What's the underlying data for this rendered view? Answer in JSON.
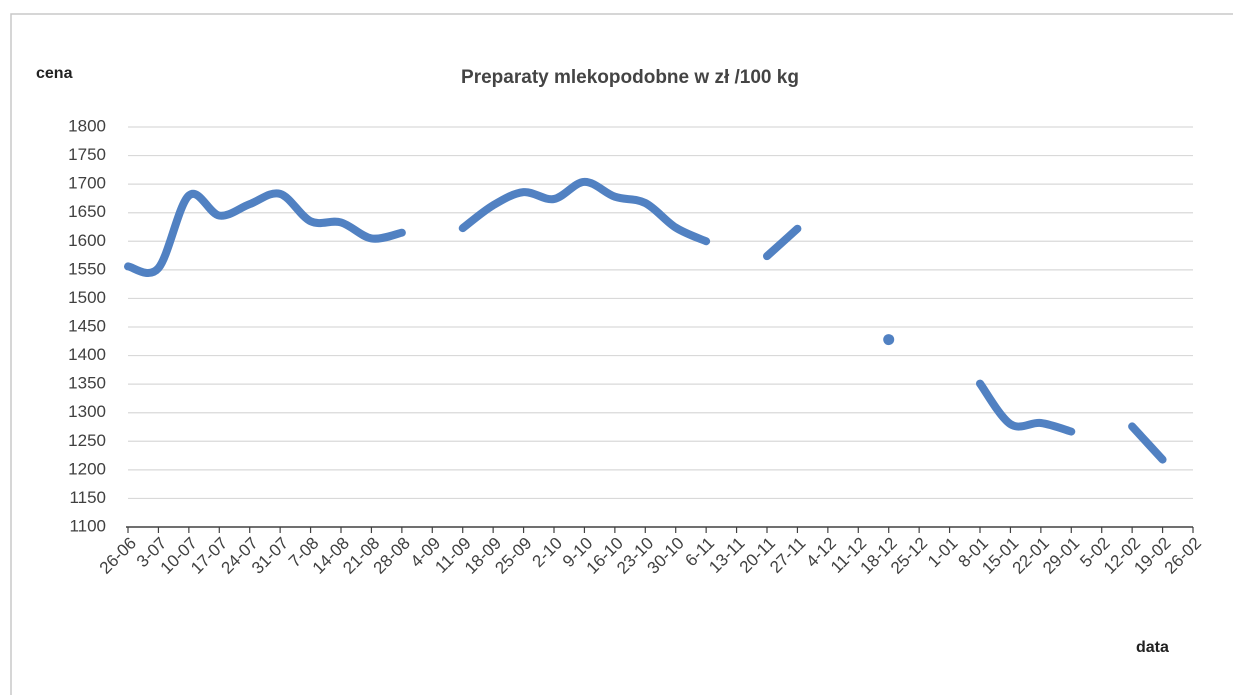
{
  "chart_data": {
    "type": "line",
    "title": "Preparaty mlekopodobne w zł /100 kg",
    "y_label": "cena",
    "x_label": "data",
    "categories": [
      "26-06",
      "3-07",
      "10-07",
      "17-07",
      "24-07",
      "31-07",
      "7-08",
      "14-08",
      "21-08",
      "28-08",
      "4-09",
      "11-09",
      "18-09",
      "25-09",
      "2-10",
      "9-10",
      "16-10",
      "23-10",
      "30-10",
      "6-11",
      "13-11",
      "20-11",
      "27-11",
      "4-12",
      "11-12",
      "18-12",
      "25-12",
      "1-01",
      "8-01",
      "15-01",
      "22-01",
      "29-01",
      "5-02",
      "12-02",
      "19-02",
      "26-02"
    ],
    "series": [
      {
        "name": "Preparaty mlekopodobne",
        "color": "#5181c2",
        "values": [
          1556,
          1553,
          1680,
          1645,
          1665,
          1683,
          1635,
          1633,
          1605,
          1615,
          null,
          1623,
          1663,
          1686,
          1674,
          1704,
          1678,
          1667,
          1624,
          1600,
          null,
          1574,
          1622,
          null,
          null,
          1428,
          null,
          null,
          1351,
          1280,
          1282,
          1267,
          null,
          1276,
          1218,
          null
        ],
        "value_labels": [
          null,
          null,
          null,
          null,
          null,
          null,
          null,
          null,
          null,
          null,
          null,
          null,
          null,
          null,
          null,
          null,
          null,
          null,
          null,
          null,
          null,
          null,
          null,
          null,
          null,
          null,
          null,
          null,
          null,
          null,
          null,
          null,
          null,
          null,
          null,
          null
        ]
      }
    ],
    "ylim": [
      1100,
      1800
    ],
    "yticks": [
      1100,
      1150,
      1200,
      1250,
      1300,
      1350,
      1400,
      1450,
      1500,
      1550,
      1600,
      1650,
      1700,
      1750,
      1800
    ],
    "grid": true
  }
}
